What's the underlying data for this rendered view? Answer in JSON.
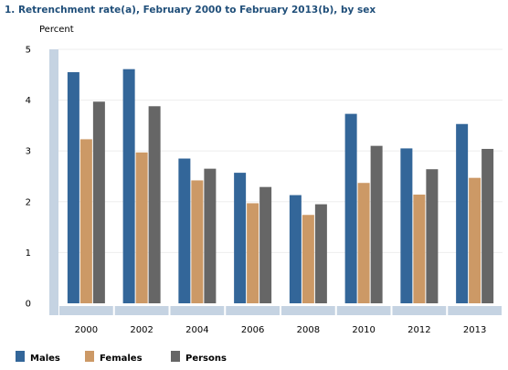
{
  "chart_data": {
    "type": "bar",
    "title": "1. Retrenchment rate(a), February 2000 to February 2013(b), by sex",
    "ylabel": "Percent",
    "xlabel": "",
    "ylim": [
      0,
      5
    ],
    "yticks": [
      0,
      1,
      2,
      3,
      4,
      5
    ],
    "grid": true,
    "legend_position": "bottom-left",
    "categories": [
      "2000",
      "2002",
      "2004",
      "2006",
      "2008",
      "2010",
      "2012",
      "2013"
    ],
    "series": [
      {
        "name": "Males",
        "color": "#336699",
        "values": [
          4.55,
          4.61,
          2.85,
          2.57,
          2.13,
          3.73,
          3.05,
          3.53
        ]
      },
      {
        "name": "Females",
        "color": "#cc9966",
        "values": [
          3.23,
          2.97,
          2.42,
          1.97,
          1.74,
          2.37,
          2.14,
          2.47
        ]
      },
      {
        "name": "Persons",
        "color": "#666666",
        "values": [
          3.97,
          3.88,
          2.65,
          2.29,
          1.95,
          3.1,
          2.64,
          3.04
        ]
      }
    ]
  }
}
